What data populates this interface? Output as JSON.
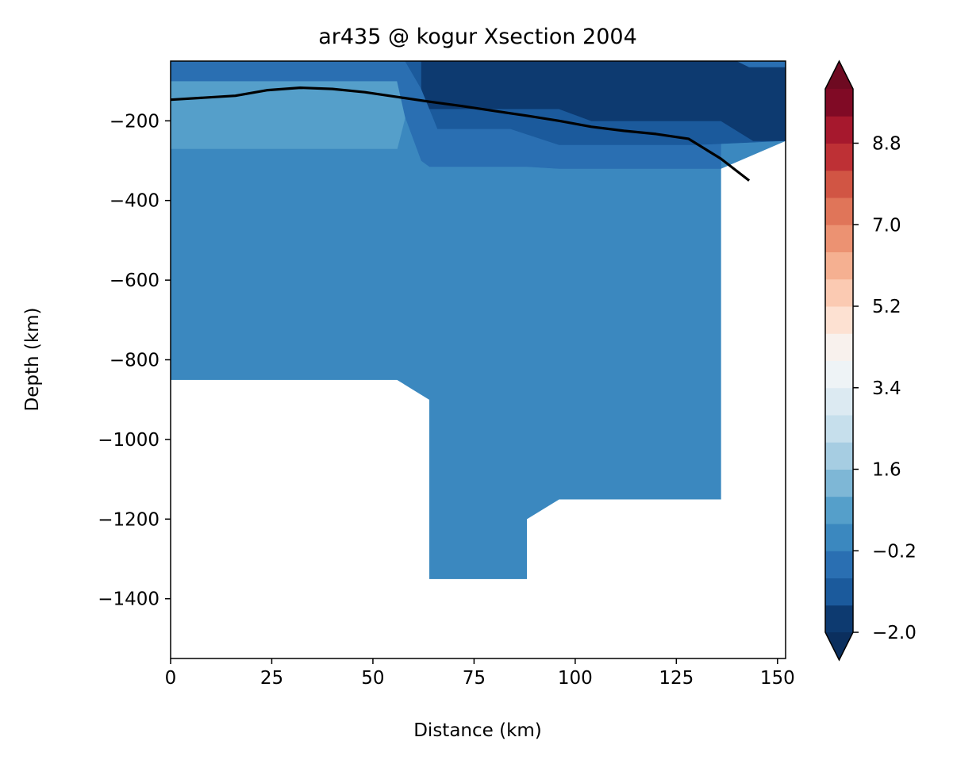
{
  "chart_data": {
    "type": "contourf",
    "title": "ar435 @ kogur Xsection 2004",
    "xlabel": "Distance (km)",
    "ylabel": "Depth (km)",
    "xlim": [
      0,
      152
    ],
    "ylim": [
      -1550,
      -50
    ],
    "xticks": [
      {
        "value": 0,
        "label": "0"
      },
      {
        "value": 25,
        "label": "25"
      },
      {
        "value": 50,
        "label": "50"
      },
      {
        "value": 75,
        "label": "75"
      },
      {
        "value": 100,
        "label": "100"
      },
      {
        "value": 125,
        "label": "125"
      },
      {
        "value": 150,
        "label": "150"
      }
    ],
    "yticks": [
      {
        "value": -200,
        "label": "−200"
      },
      {
        "value": -400,
        "label": "−400"
      },
      {
        "value": -600,
        "label": "−600"
      },
      {
        "value": -800,
        "label": "−800"
      },
      {
        "value": -1000,
        "label": "−1000"
      },
      {
        "value": -1200,
        "label": "−1200"
      },
      {
        "value": -1400,
        "label": "−1400"
      }
    ],
    "grid": false,
    "colorbar": {
      "levels": [
        -2.0,
        -1.4,
        -0.8,
        -0.2,
        0.4,
        1.0,
        1.6,
        2.2,
        2.8,
        3.4,
        4.0,
        4.6,
        5.2,
        5.8,
        6.4,
        7.0,
        7.6,
        8.2,
        8.8,
        9.4,
        10.0
      ],
      "colors": [
        "#0d3a70",
        "#1b5a9c",
        "#2a6fb2",
        "#3b88bf",
        "#559fca",
        "#7eb7d6",
        "#a6cde2",
        "#c6dfec",
        "#dceaf2",
        "#eef3f6",
        "#f8f1ed",
        "#fde1d2",
        "#fbcab2",
        "#f5b091",
        "#ec9272",
        "#e07559",
        "#d15544",
        "#be3035",
        "#a6182d",
        "#800a25"
      ],
      "extend_min_color": "#0b2f5e",
      "extend_max_color": "#6e0a21",
      "ticks": [
        {
          "value": -2.0,
          "label": "−2.0"
        },
        {
          "value": -0.2,
          "label": "−0.2"
        },
        {
          "value": 1.6,
          "label": "1.6"
        },
        {
          "value": 3.4,
          "label": "3.4"
        },
        {
          "value": 5.2,
          "label": "5.2"
        },
        {
          "value": 7.0,
          "label": "7.0"
        },
        {
          "value": 8.8,
          "label": "8.8"
        }
      ]
    },
    "regions": [
      {
        "level_index": 3,
        "color": "#3b88bf",
        "points": [
          [
            0,
            -50
          ],
          [
            152,
            -50
          ],
          [
            152,
            -250
          ],
          [
            136,
            -320
          ],
          [
            136,
            -1150
          ],
          [
            96,
            -1150
          ],
          [
            88,
            -1200
          ],
          [
            88,
            -1350
          ],
          [
            64,
            -1350
          ],
          [
            64,
            -900
          ],
          [
            56,
            -850
          ],
          [
            0,
            -850
          ]
        ]
      },
      {
        "level_index": 4,
        "color": "#559fca",
        "points": [
          [
            0,
            -100
          ],
          [
            56,
            -100
          ],
          [
            58,
            -190
          ],
          [
            56,
            -270
          ],
          [
            0,
            -270
          ]
        ]
      },
      {
        "level_index": 2,
        "color": "#2a6fb2",
        "points": [
          [
            0,
            -50
          ],
          [
            152,
            -50
          ],
          [
            152,
            -250
          ],
          [
            136,
            -250
          ],
          [
            136,
            -320
          ],
          [
            96,
            -320
          ],
          [
            88,
            -315
          ],
          [
            64,
            -315
          ],
          [
            62,
            -300
          ],
          [
            58,
            -190
          ],
          [
            56,
            -100
          ],
          [
            0,
            -100
          ]
        ]
      },
      {
        "level_index": 1,
        "color": "#1b5a9c",
        "points": [
          [
            62,
            -50
          ],
          [
            152,
            -50
          ],
          [
            152,
            -250
          ],
          [
            130,
            -260
          ],
          [
            96,
            -260
          ],
          [
            84,
            -220
          ],
          [
            66,
            -220
          ],
          [
            62,
            -120
          ],
          [
            58,
            -50
          ]
        ]
      },
      {
        "level_index": 0,
        "color": "#0d3a70",
        "points": [
          [
            62,
            -50
          ],
          [
            152,
            -50
          ],
          [
            152,
            -250
          ],
          [
            144,
            -250
          ],
          [
            136,
            -200
          ],
          [
            104,
            -200
          ],
          [
            96,
            -170
          ],
          [
            64,
            -170
          ],
          [
            62,
            -120
          ]
        ]
      },
      {
        "level_index": 2,
        "color": "#2a6fb2",
        "points": [
          [
            140,
            -50
          ],
          [
            152,
            -50
          ],
          [
            152,
            -65
          ],
          [
            143,
            -65
          ]
        ]
      }
    ],
    "line": {
      "color": "#000000",
      "x": [
        0,
        16,
        24,
        32,
        40,
        48,
        56,
        64,
        72,
        80,
        88,
        96,
        104,
        112,
        120,
        128,
        136,
        143
      ],
      "y": [
        -147,
        -137,
        -123,
        -117,
        -120,
        -128,
        -140,
        -152,
        -163,
        -175,
        -187,
        -200,
        -215,
        -225,
        -233,
        -245,
        -295,
        -350
      ]
    }
  }
}
